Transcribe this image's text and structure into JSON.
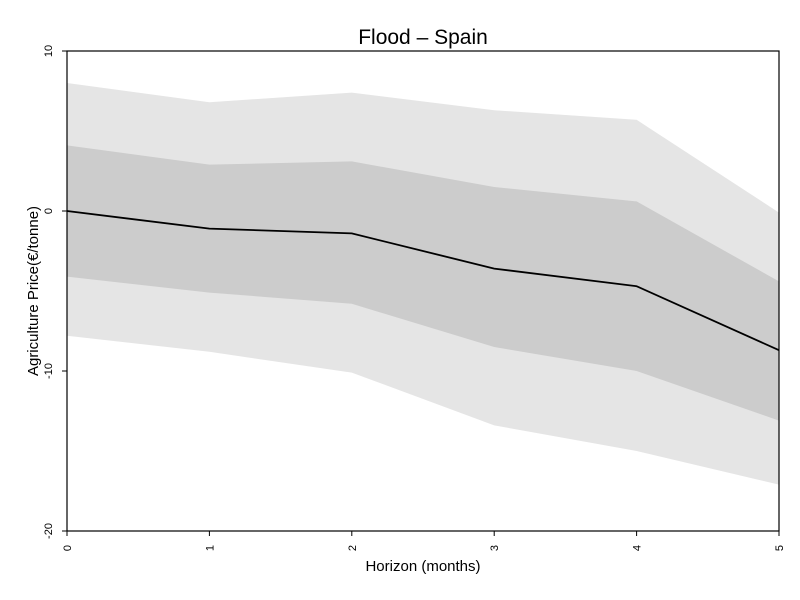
{
  "chart_data": {
    "type": "line",
    "title": "Flood – Spain",
    "xlabel": "Horizon (months)",
    "ylabel": "Agriculture Price(€/tonne)",
    "xlim": [
      0,
      5
    ],
    "ylim": [
      -20,
      10
    ],
    "x_ticks": [
      "0",
      "1",
      "2",
      "3",
      "4",
      "5"
    ],
    "y_ticks": [
      "10",
      "0",
      "-10",
      "-20"
    ],
    "x": [
      0,
      1,
      2,
      3,
      4,
      5
    ],
    "series": [
      {
        "values": [
          0,
          -1.1,
          -1.4,
          -3.6,
          -4.7,
          -8.7
        ]
      }
    ],
    "bands": [
      {
        "lower": [
          -7.8,
          -8.8,
          -10.1,
          -13.4,
          -15.0,
          -17.1
        ],
        "upper": [
          8.0,
          6.8,
          7.4,
          6.3,
          5.7,
          -0.1
        ],
        "color": "#e5e5e5"
      },
      {
        "lower": [
          -4.1,
          -5.1,
          -5.8,
          -8.5,
          -10.0,
          -13.1
        ],
        "upper": [
          4.1,
          2.9,
          3.1,
          1.5,
          0.6,
          -4.4
        ],
        "color": "#cccccc"
      }
    ],
    "grid": false,
    "line_color": "#000000"
  }
}
